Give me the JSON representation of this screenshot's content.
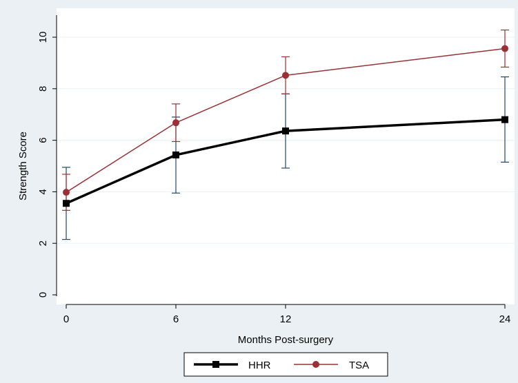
{
  "chart_data": {
    "type": "line",
    "xlabel": "Months Post-surgery",
    "ylabel": "Strength Score",
    "x": [
      0,
      6,
      12,
      24
    ],
    "xticks": [
      "0",
      "6",
      "12",
      "24"
    ],
    "yticks": [
      "0",
      "2",
      "4",
      "6",
      "8",
      "10"
    ],
    "ylim": [
      0,
      10.3
    ],
    "xlim": [
      0,
      24
    ],
    "grid": true,
    "legend": "bottom",
    "series": [
      {
        "name": "HHR",
        "values": [
          3.55,
          5.43,
          6.36,
          6.8
        ],
        "lower": [
          2.15,
          3.95,
          4.92,
          5.15
        ],
        "upper": [
          4.95,
          6.9,
          7.8,
          8.46
        ],
        "color": "#000000",
        "marker": "square"
      },
      {
        "name": "TSA",
        "values": [
          3.98,
          6.68,
          8.52,
          9.56
        ],
        "lower": [
          3.28,
          5.95,
          7.8,
          8.84
        ],
        "upper": [
          4.68,
          7.41,
          9.24,
          10.28
        ],
        "color": "#9b3034",
        "marker": "circle"
      }
    ],
    "errorbar_color": "#1a476f"
  }
}
